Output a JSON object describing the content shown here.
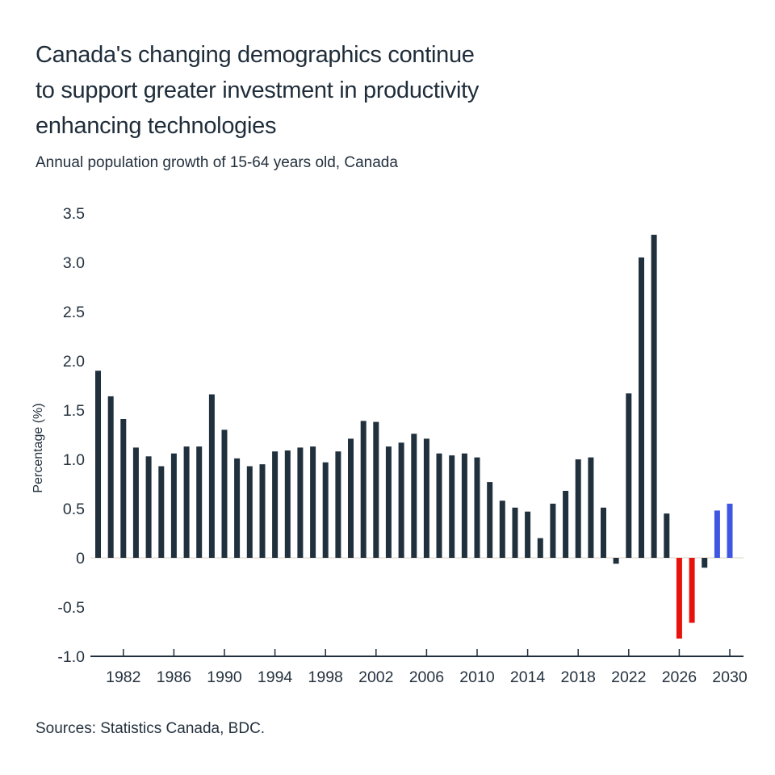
{
  "header": {
    "title_lines": [
      "Canada's changing demographics continue",
      "to support greater investment in productivity",
      "enhancing technologies"
    ],
    "subtitle": "Annual population growth of 15-64 years old, Canada"
  },
  "footer": {
    "sources": "Sources: Statistics Canada, BDC."
  },
  "chart_data": {
    "type": "bar",
    "title": "Canada's changing demographics continue to support greater investment in productivity enhancing technologies",
    "subtitle": "Annual population growth of 15-64 years old, Canada",
    "xlabel": "",
    "ylabel": "Percentage (%)",
    "ylim": [
      -1.0,
      3.5
    ],
    "ytick_step": 0.5,
    "ytick_labels": [
      "3.5",
      "3.0",
      "2.5",
      "2.0",
      "1.5",
      "1.0",
      "0.5",
      "0",
      "-0.5",
      "-1.0"
    ],
    "xtick_years": [
      1982,
      1986,
      1990,
      1994,
      1998,
      2002,
      2006,
      2010,
      2014,
      2018,
      2022,
      2026,
      2030
    ],
    "grid": "off",
    "legend": "none",
    "years": [
      1980,
      1981,
      1982,
      1983,
      1984,
      1985,
      1986,
      1987,
      1988,
      1989,
      1990,
      1991,
      1992,
      1993,
      1994,
      1995,
      1996,
      1997,
      1998,
      1999,
      2000,
      2001,
      2002,
      2003,
      2004,
      2005,
      2006,
      2007,
      2008,
      2009,
      2010,
      2011,
      2012,
      2013,
      2014,
      2015,
      2016,
      2017,
      2018,
      2019,
      2020,
      2021,
      2022,
      2023,
      2024,
      2025,
      2026,
      2027,
      2028,
      2029,
      2030
    ],
    "values": [
      1.9,
      1.64,
      1.41,
      1.12,
      1.03,
      0.93,
      1.06,
      1.13,
      1.13,
      1.66,
      1.3,
      1.01,
      0.93,
      0.95,
      1.08,
      1.09,
      1.12,
      1.13,
      0.97,
      1.08,
      1.21,
      1.39,
      1.38,
      1.13,
      1.17,
      1.26,
      1.21,
      1.06,
      1.04,
      1.06,
      1.02,
      0.77,
      0.58,
      0.51,
      0.47,
      0.2,
      0.55,
      0.68,
      1.0,
      1.02,
      0.51,
      -0.06,
      1.67,
      3.05,
      3.28,
      0.45,
      -0.82,
      -0.66,
      -0.1,
      0.48,
      0.55
    ],
    "red_years": [
      2026,
      2027
    ],
    "blue_years": [
      2029,
      2030
    ],
    "colors": {
      "bar_default": "#20303d",
      "bar_red": "#e8120d",
      "bar_blue": "#3f56e3",
      "axis_line": "#22303d",
      "zero_line": "#e9e2da",
      "tick_label": "#25323f",
      "title_text": "#1f2d3a"
    }
  }
}
